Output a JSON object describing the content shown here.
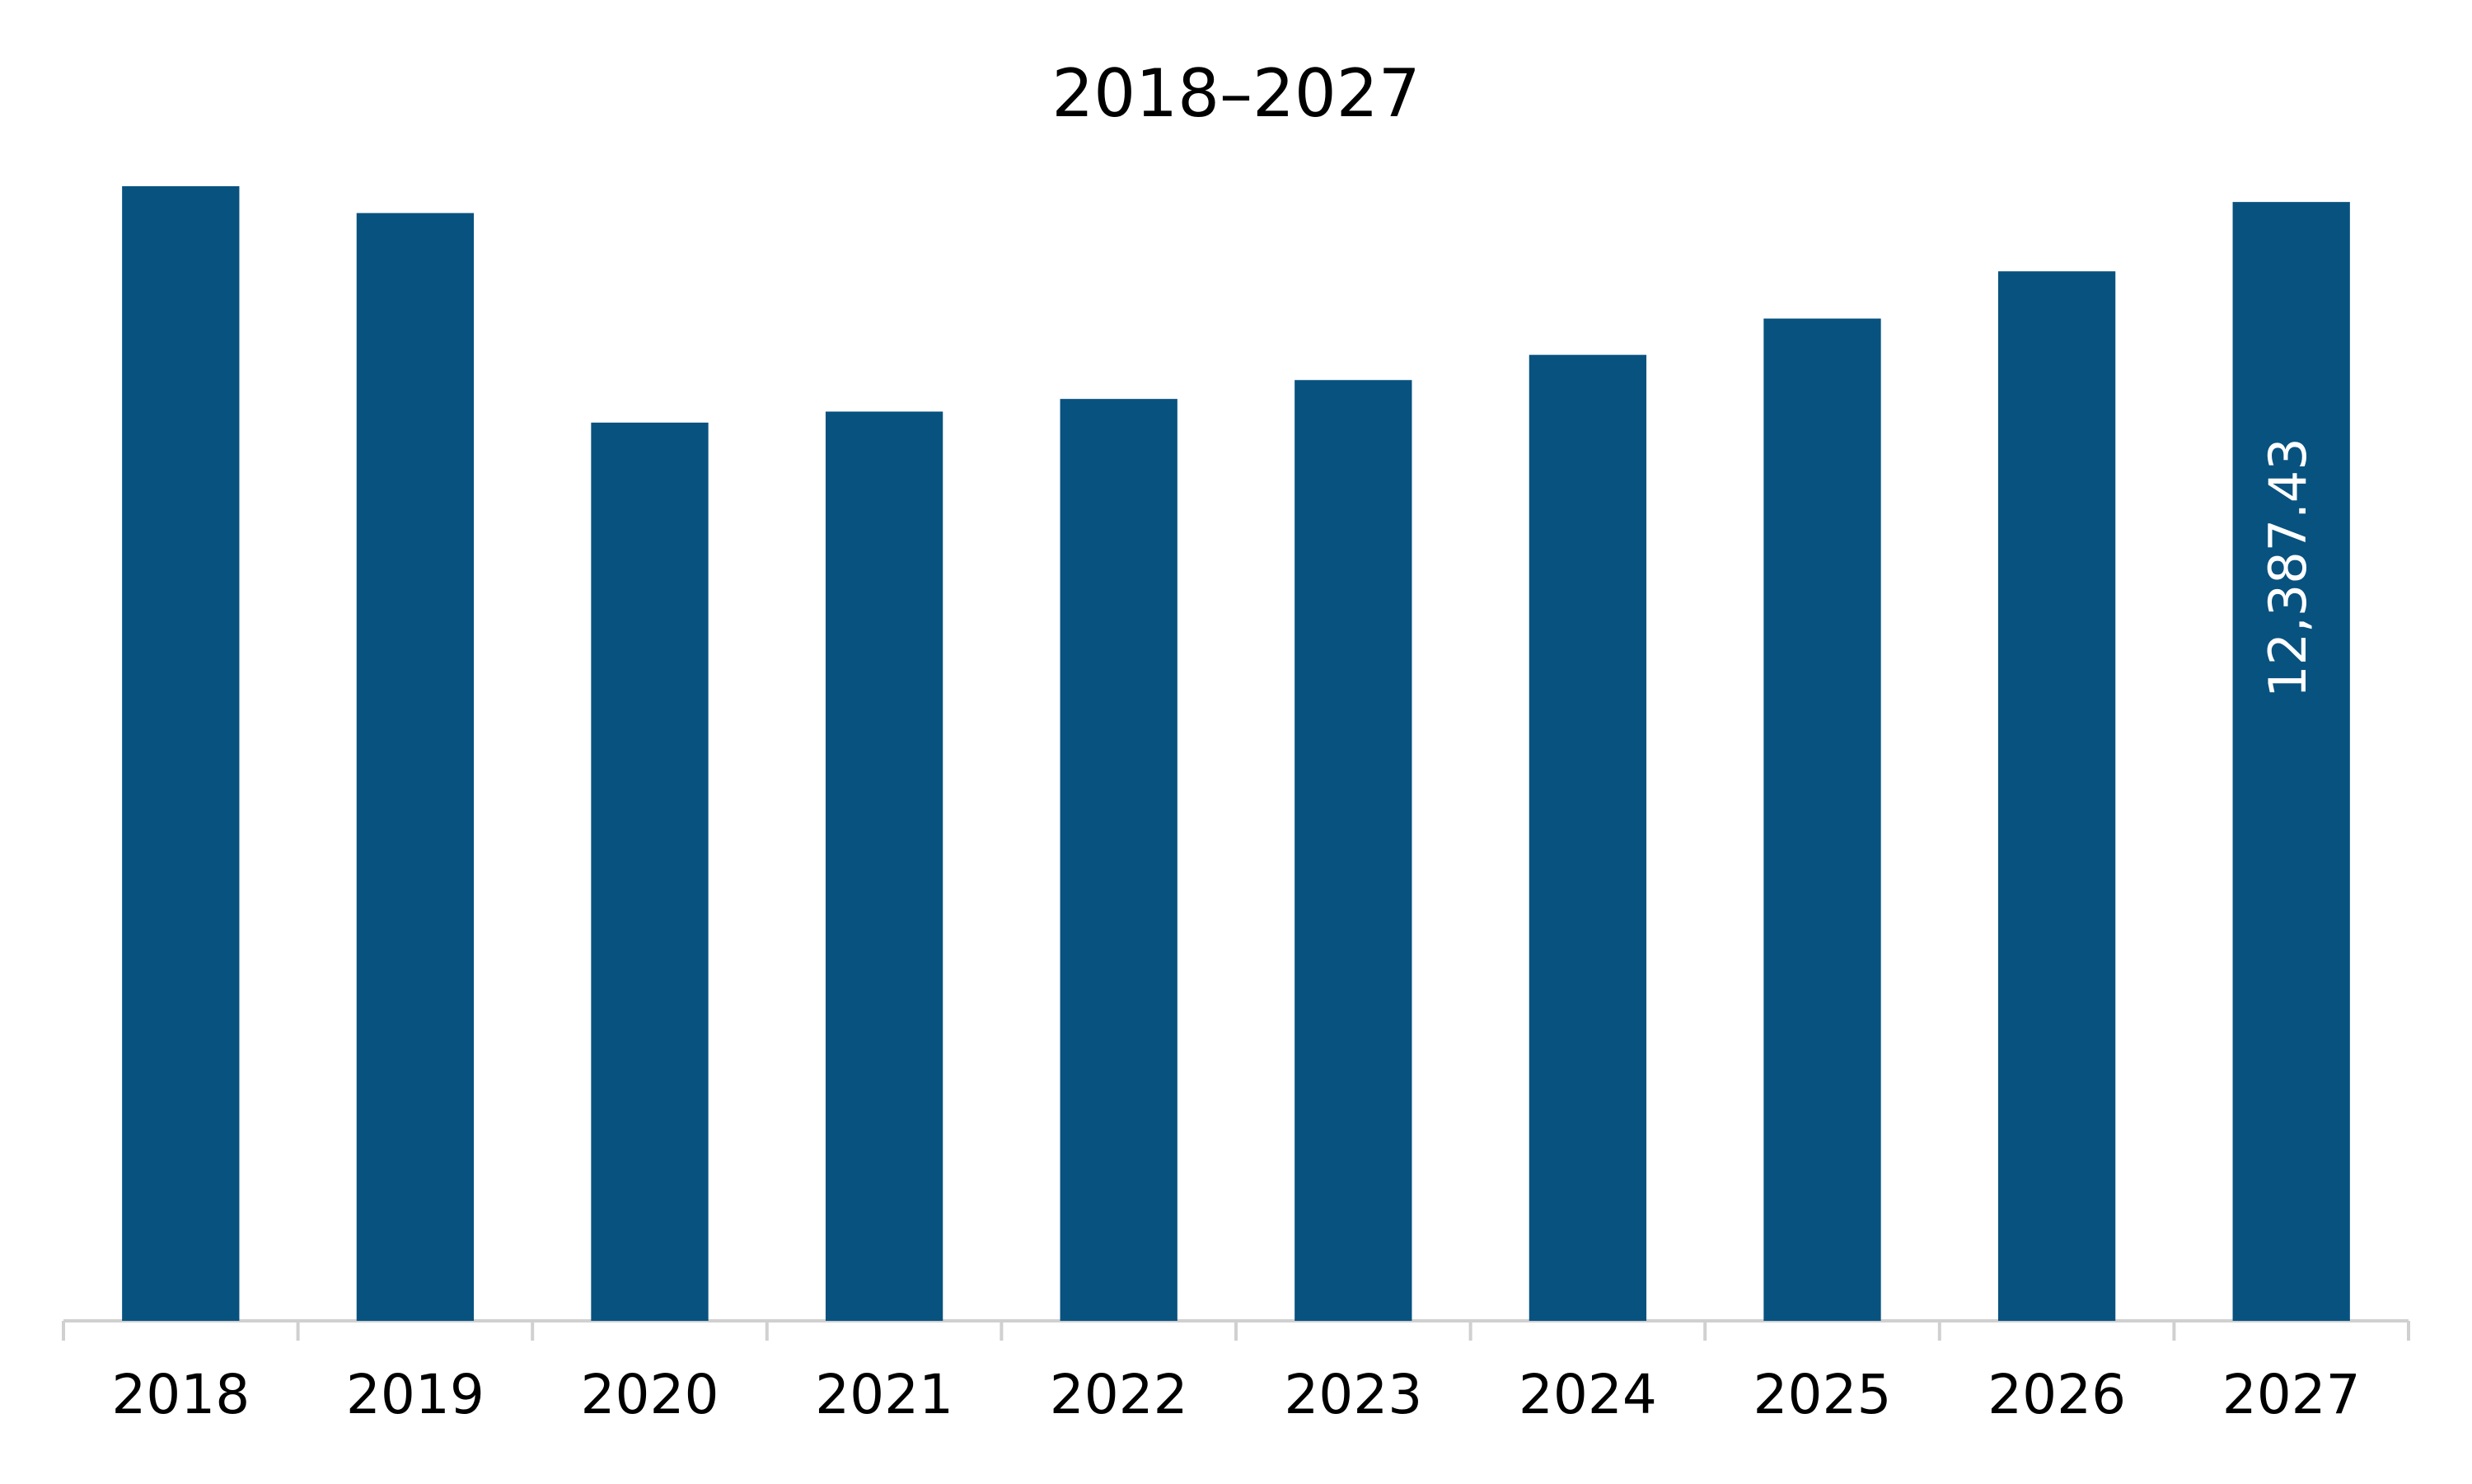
{
  "chart_data": {
    "type": "bar",
    "title": "2018–2027",
    "categories": [
      "2018",
      "2019",
      "2020",
      "2021",
      "2022",
      "2023",
      "2024",
      "2025",
      "2026",
      "2027"
    ],
    "values": [
      12562,
      12265,
      9945,
      10067,
      10207,
      10416,
      10695,
      11097,
      11620,
      12387.43
    ],
    "value_labels": [
      null,
      null,
      null,
      null,
      null,
      null,
      null,
      null,
      null,
      "12,387.43"
    ],
    "color": "#08527f"
  }
}
